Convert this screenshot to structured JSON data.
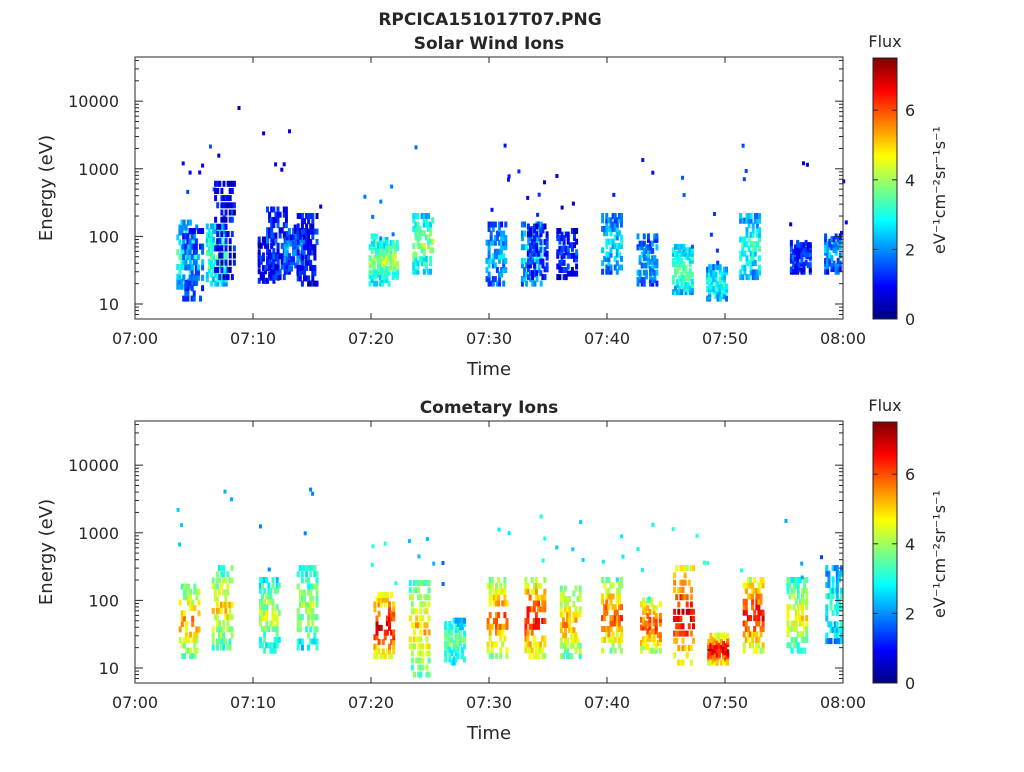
{
  "figure": {
    "title": "RPCICA151017T07.PNG",
    "colorbar_label": "Flux",
    "colorbar_units": "eV⁻¹cm⁻²sr⁻¹s⁻¹",
    "colorbar_ticks": [
      "0",
      "2",
      "4",
      "6"
    ],
    "colorbar_range": [
      0,
      7.5
    ],
    "colormap": [
      "#00007f",
      "#0000ff",
      "#007fff",
      "#00ffff",
      "#7fff7f",
      "#ffff00",
      "#ff7f00",
      "#ff0000",
      "#7f0000"
    ]
  },
  "chart_data": [
    {
      "type": "heatmap",
      "title": "Solar Wind Ions",
      "xlabel": "Time",
      "ylabel": "Energy (eV)",
      "xlim": [
        "07:00",
        "08:00"
      ],
      "x_ticks": [
        "07:00",
        "07:10",
        "07:20",
        "07:30",
        "07:40",
        "07:50",
        "08:00"
      ],
      "ylim": [
        6,
        45000
      ],
      "y_scale": "log",
      "y_ticks": [
        "10",
        "100",
        "1000",
        "10000"
      ],
      "columns": [
        {
          "t": 4.3,
          "e_min": 18,
          "e_max": 160,
          "flux": 3.2
        },
        {
          "t": 4.8,
          "e_min": 12,
          "e_max": 120,
          "flux": 2.0
        },
        {
          "t": 6.8,
          "e_min": 20,
          "e_max": 140,
          "flux": 3.5
        },
        {
          "t": 7.5,
          "e_min": 25,
          "e_max": 600,
          "flux": 1.0
        },
        {
          "t": 11.2,
          "e_min": 22,
          "e_max": 90,
          "flux": 1.2
        },
        {
          "t": 11.9,
          "e_min": 25,
          "e_max": 250,
          "flux": 1.4
        },
        {
          "t": 13.4,
          "e_min": 30,
          "e_max": 120,
          "flux": 2.0
        },
        {
          "t": 14.5,
          "e_min": 20,
          "e_max": 200,
          "flux": 1.2
        },
        {
          "t": 20.6,
          "e_min": 20,
          "e_max": 100,
          "flux": 4.0
        },
        {
          "t": 21.3,
          "e_min": 25,
          "e_max": 80,
          "flux": 4.2
        },
        {
          "t": 24.3,
          "e_min": 30,
          "e_max": 200,
          "flux": 3.8
        },
        {
          "t": 30.5,
          "e_min": 20,
          "e_max": 150,
          "flux": 2.4
        },
        {
          "t": 33.5,
          "e_min": 20,
          "e_max": 150,
          "flux": 2.8
        },
        {
          "t": 34.0,
          "e_min": 25,
          "e_max": 140,
          "flux": 1.5
        },
        {
          "t": 36.5,
          "e_min": 25,
          "e_max": 120,
          "flux": 1.3
        },
        {
          "t": 40.3,
          "e_min": 30,
          "e_max": 200,
          "flux": 2.6
        },
        {
          "t": 43.3,
          "e_min": 20,
          "e_max": 100,
          "flux": 2.3
        },
        {
          "t": 46.3,
          "e_min": 15,
          "e_max": 70,
          "flux": 3.6
        },
        {
          "t": 49.2,
          "e_min": 12,
          "e_max": 35,
          "flux": 3.0
        },
        {
          "t": 52.0,
          "e_min": 25,
          "e_max": 200,
          "flux": 3.2
        },
        {
          "t": 56.3,
          "e_min": 30,
          "e_max": 80,
          "flux": 1.4
        },
        {
          "t": 59.2,
          "e_min": 30,
          "e_max": 100,
          "flux": 2.2
        }
      ]
    },
    {
      "type": "heatmap",
      "title": "Cometary Ions",
      "xlabel": "Time",
      "ylabel": "Energy (eV)",
      "xlim": [
        "07:00",
        "08:00"
      ],
      "x_ticks": [
        "07:00",
        "07:10",
        "07:20",
        "07:30",
        "07:40",
        "07:50",
        "08:00"
      ],
      "ylim": [
        6,
        45000
      ],
      "y_scale": "log",
      "y_ticks": [
        "10",
        "100",
        "1000",
        "10000"
      ],
      "columns": [
        {
          "t": 4.5,
          "e_min": 15,
          "e_max": 160,
          "flux": 5.5
        },
        {
          "t": 7.3,
          "e_min": 20,
          "e_max": 300,
          "flux": 5.0
        },
        {
          "t": 11.3,
          "e_min": 18,
          "e_max": 200,
          "flux": 4.3
        },
        {
          "t": 14.5,
          "e_min": 20,
          "e_max": 300,
          "flux": 4.2
        },
        {
          "t": 21.0,
          "e_min": 15,
          "e_max": 120,
          "flux": 6.8
        },
        {
          "t": 24.0,
          "e_min": 8,
          "e_max": 180,
          "flux": 5.2
        },
        {
          "t": 27.0,
          "e_min": 12,
          "e_max": 50,
          "flux": 3.8
        },
        {
          "t": 30.6,
          "e_min": 15,
          "e_max": 200,
          "flux": 6.0
        },
        {
          "t": 33.8,
          "e_min": 15,
          "e_max": 200,
          "flux": 6.5
        },
        {
          "t": 36.8,
          "e_min": 15,
          "e_max": 150,
          "flux": 5.5
        },
        {
          "t": 40.3,
          "e_min": 18,
          "e_max": 200,
          "flux": 6.0
        },
        {
          "t": 43.6,
          "e_min": 18,
          "e_max": 100,
          "flux": 6.2
        },
        {
          "t": 46.4,
          "e_min": 12,
          "e_max": 300,
          "flux": 6.9
        },
        {
          "t": 49.3,
          "e_min": 12,
          "e_max": 30,
          "flux": 7.0
        },
        {
          "t": 52.3,
          "e_min": 18,
          "e_max": 200,
          "flux": 6.6
        },
        {
          "t": 56.0,
          "e_min": 18,
          "e_max": 200,
          "flux": 4.8
        },
        {
          "t": 59.3,
          "e_min": 25,
          "e_max": 300,
          "flux": 3.2
        }
      ]
    }
  ]
}
